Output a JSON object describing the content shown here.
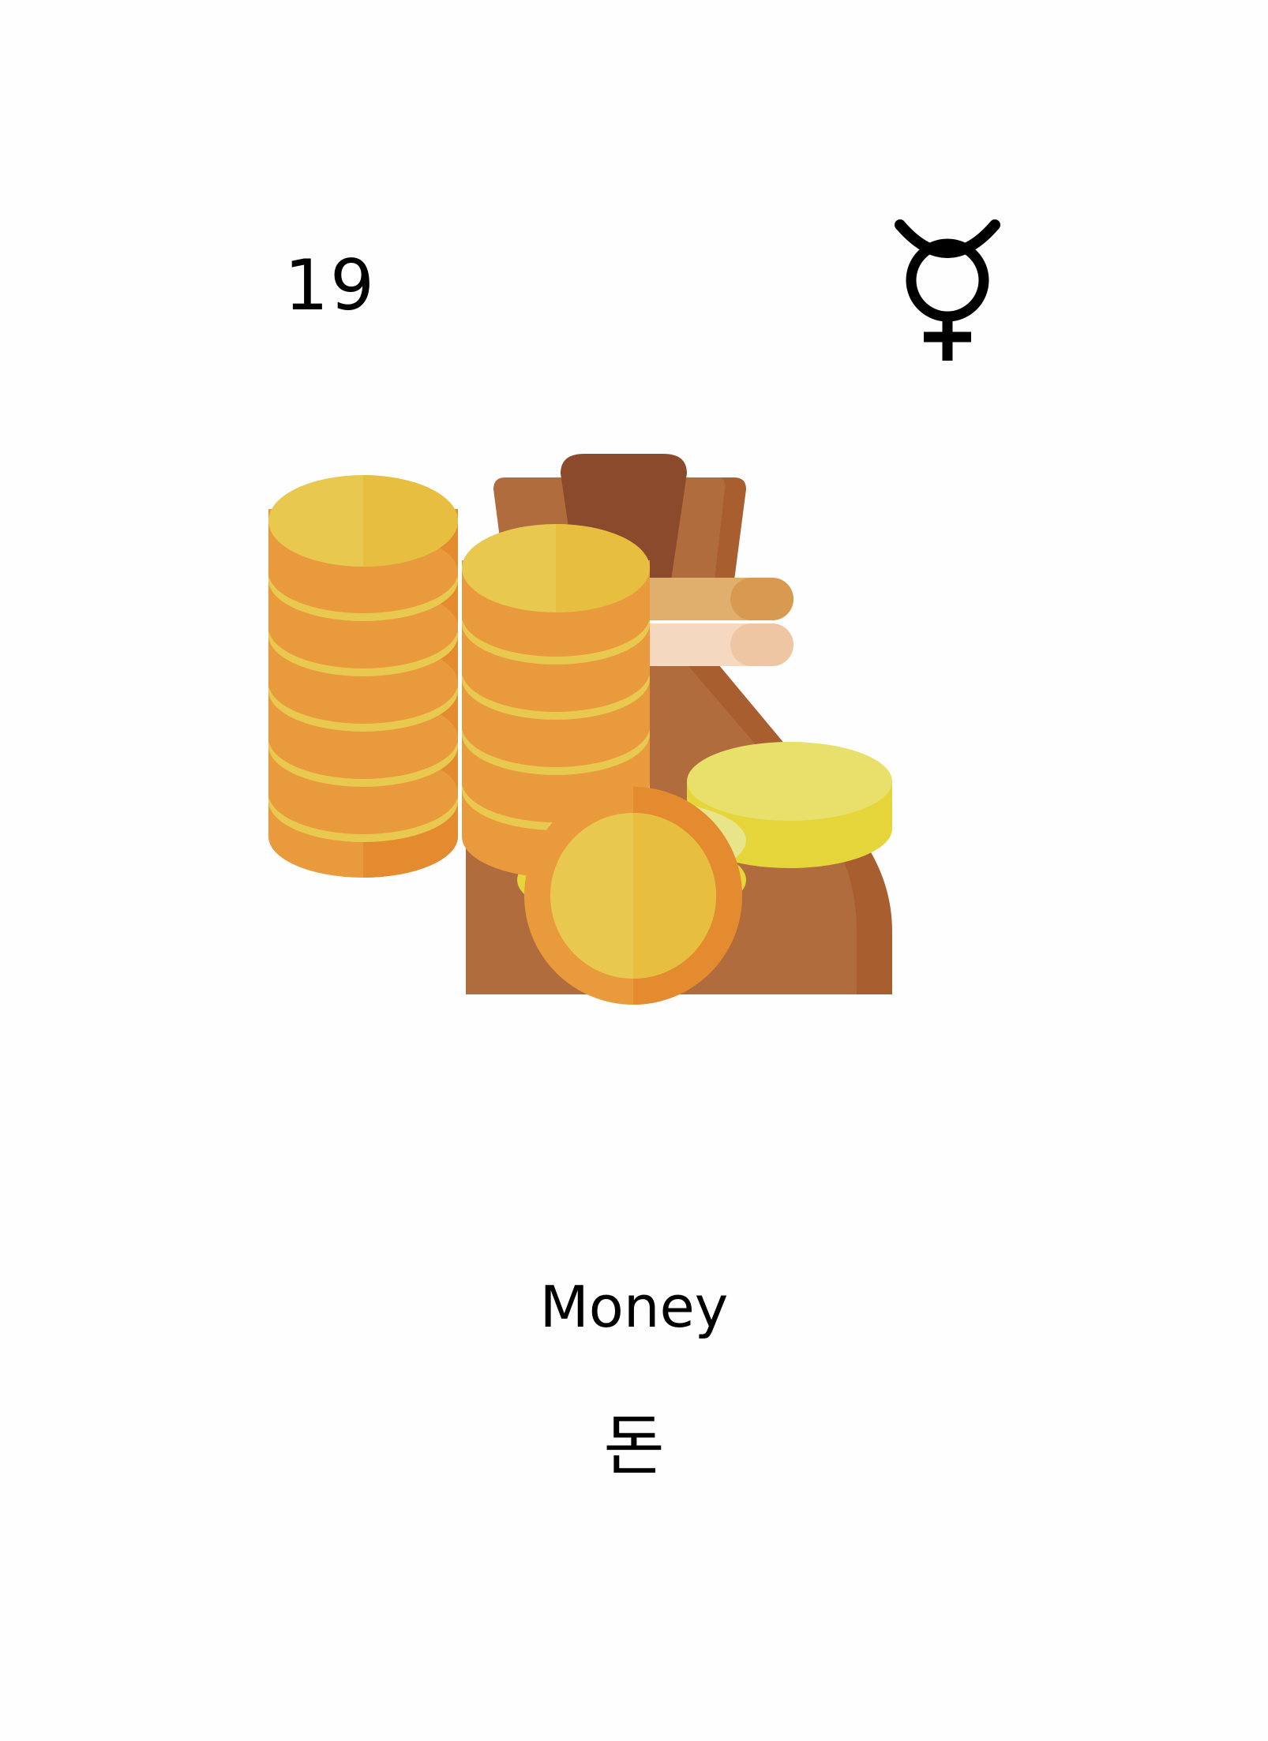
{
  "card": {
    "number": "19",
    "planet_icon": "mercury-symbol-icon",
    "illustration_icon": "money-bag-and-coins-icon",
    "title": "Money",
    "subtitle": "돈"
  },
  "colors": {
    "bag_dark": "#8B4A2B",
    "bag_mid": "#B06C3C",
    "bag_shadow": "#A85E2E",
    "rope_tan": "#E0AF6E",
    "rope_light": "#F5D8C0",
    "tie_red": "#D96666",
    "coin_gold": "#E8C84F",
    "coin_gold_right": "#E8BE40",
    "coin_orange": "#E89A3C",
    "coin_orange_dark": "#E38B2E",
    "coin_pale": "#E8E48A",
    "coin_yellow": "#E8E06A",
    "coin_yellow_edge": "#E5D53A"
  }
}
